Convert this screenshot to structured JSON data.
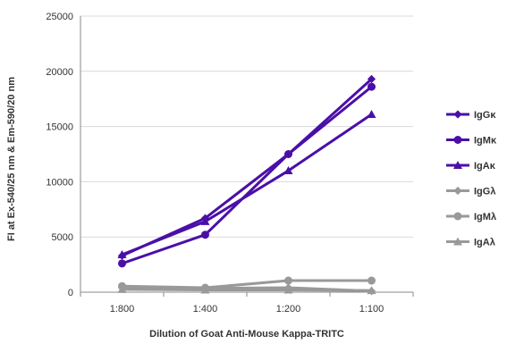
{
  "chart_data": {
    "type": "line",
    "xlabel": "Dilution of Goat Anti-Mouse Kappa-TRITC",
    "ylabel": "FI at Ex-540/25 nm & Em-590/20 nm",
    "categories": [
      "1:800",
      "1:400",
      "1:200",
      "1:100"
    ],
    "ylim": [
      0,
      25000
    ],
    "yticks": [
      0,
      5000,
      10000,
      15000,
      20000,
      25000
    ],
    "grid": true,
    "legend_position": "right",
    "series": [
      {
        "name": "IgGκ",
        "values": [
          3300,
          6700,
          12500,
          19300
        ],
        "color": "#4B0FA8",
        "marker": "diamond"
      },
      {
        "name": "IgMκ",
        "values": [
          2600,
          5200,
          12500,
          18600
        ],
        "color": "#4B0FA8",
        "marker": "circle"
      },
      {
        "name": "IgAκ",
        "values": [
          3400,
          6400,
          11000,
          16100
        ],
        "color": "#4B0FA8",
        "marker": "triangle"
      },
      {
        "name": "IgGλ",
        "values": [
          400,
          350,
          400,
          100
        ],
        "color": "#999999",
        "marker": "diamond"
      },
      {
        "name": "IgMλ",
        "values": [
          550,
          400,
          1050,
          1050
        ],
        "color": "#999999",
        "marker": "circle"
      },
      {
        "name": "IgAλ",
        "values": [
          250,
          200,
          200,
          150
        ],
        "color": "#999999",
        "marker": "triangle"
      }
    ]
  }
}
